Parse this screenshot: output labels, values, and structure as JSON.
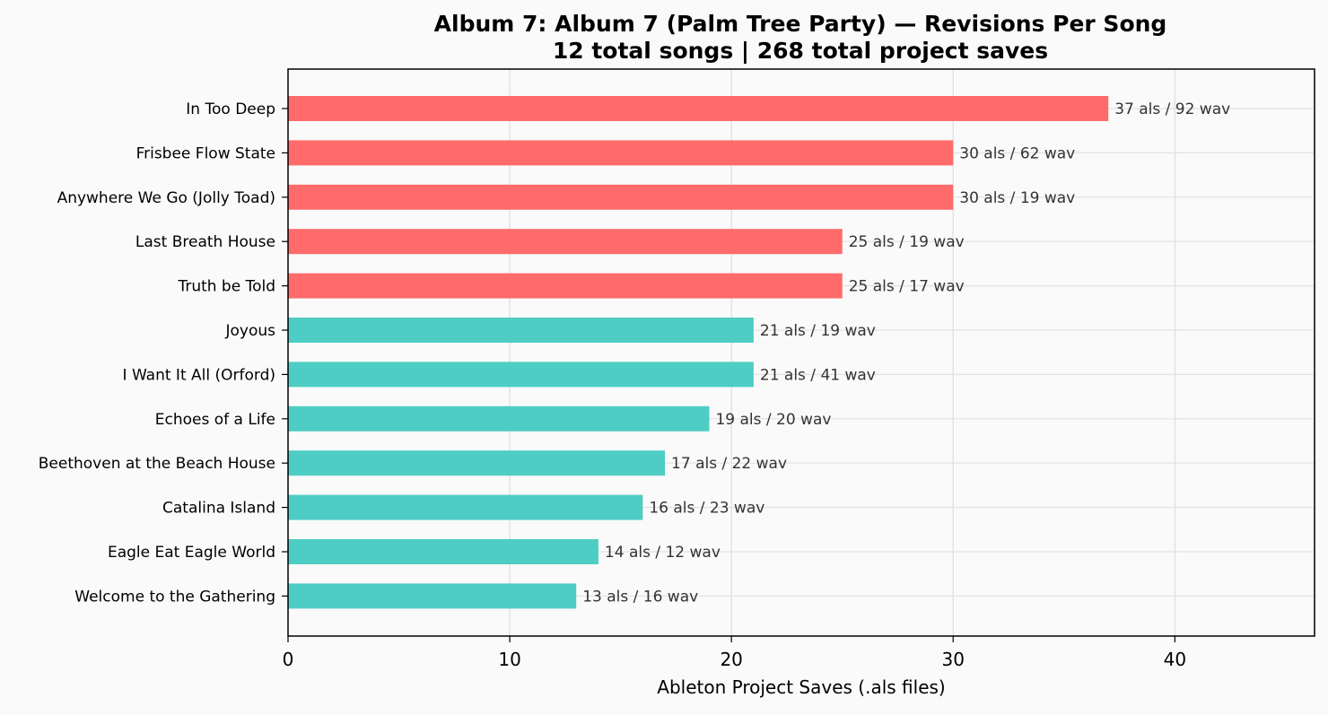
{
  "chart_data": {
    "type": "bar",
    "orientation": "horizontal",
    "title_lines": [
      "Album 7: Album 7 (Palm Tree Party) — Revisions Per Song",
      "12 total songs  |  268 total project saves"
    ],
    "xlabel": "Ableton Project Saves (.als files)",
    "ylabel": "",
    "xlim": [
      0,
      46.3
    ],
    "xticks": [
      0,
      10,
      20,
      30,
      40
    ],
    "grid": true,
    "colors": {
      "high": "#ff6b6b",
      "normal": "#4ecdc4"
    },
    "categories": [
      "In Too Deep",
      "Frisbee Flow State",
      "Anywhere We Go (Jolly Toad)",
      "Last Breath House",
      "Truth be Told",
      "Joyous",
      "I Want It All (Orford)",
      "Echoes of a Life",
      "Beethoven at the Beach House",
      "Catalina Island",
      "Eagle Eat Eagle World",
      "Welcome to the Gathering"
    ],
    "values": [
      37,
      30,
      30,
      25,
      25,
      21,
      21,
      19,
      17,
      16,
      14,
      13
    ],
    "wav_counts": [
      92,
      62,
      19,
      19,
      17,
      19,
      41,
      20,
      22,
      23,
      12,
      16
    ],
    "bar_labels": [
      "37 als / 92 wav",
      "30 als / 62 wav",
      "30 als / 19 wav",
      "25 als / 19 wav",
      "25 als / 17 wav",
      "21 als / 19 wav",
      "21 als / 41 wav",
      "19 als / 20 wav",
      "17 als / 22 wav",
      "16 als / 23 wav",
      "14 als / 12 wav",
      "13 als / 16 wav"
    ],
    "bar_color_groups": [
      "high",
      "high",
      "high",
      "high",
      "high",
      "normal",
      "normal",
      "normal",
      "normal",
      "normal",
      "normal",
      "normal"
    ]
  }
}
